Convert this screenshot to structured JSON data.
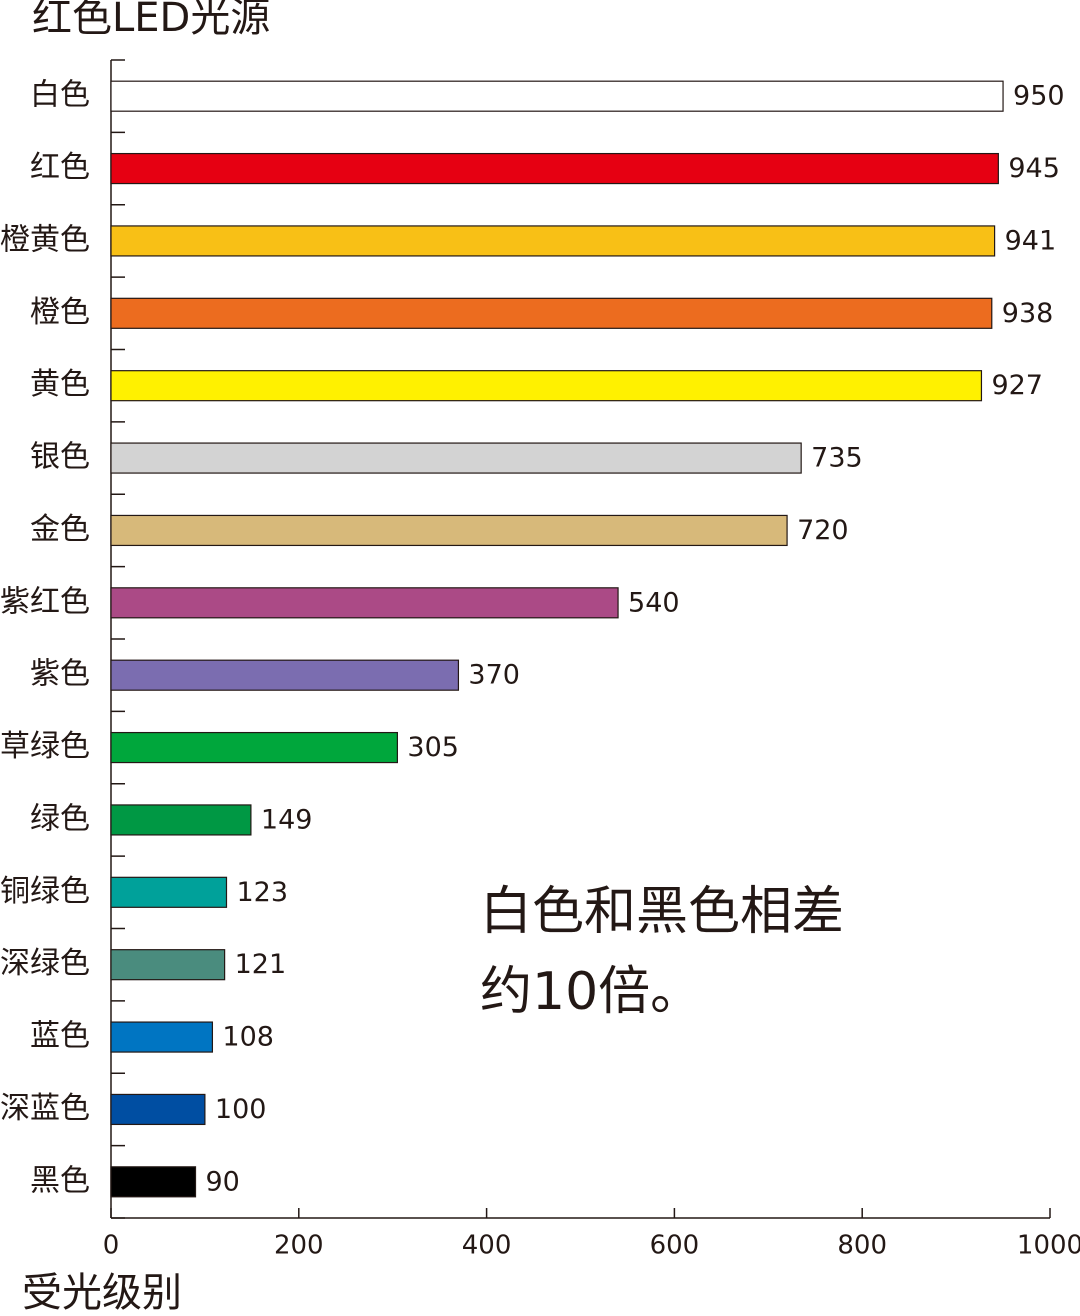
{
  "chart_data": {
    "type": "bar",
    "orientation": "horizontal",
    "title": "红色LED光源",
    "x_label": "受光级别",
    "annotation": [
      "白色和黑色相差",
      "约10倍。"
    ],
    "categories": [
      "白色",
      "红色",
      "橙黄色",
      "橙色",
      "黄色",
      "银色",
      "金色",
      "紫红色",
      "紫色",
      "草绿色",
      "绿色",
      "铜绿色",
      "深绿色",
      "蓝色",
      "深蓝色",
      "黑色"
    ],
    "values": [
      950,
      945,
      941,
      938,
      927,
      735,
      720,
      540,
      370,
      305,
      149,
      123,
      121,
      108,
      100,
      90
    ],
    "colors": [
      "#ffffff",
      "#e60012",
      "#f8c016",
      "#ec6c1f",
      "#fff100",
      "#d3d3d3",
      "#d7b97a",
      "#ab4a86",
      "#7b6db0",
      "#00a73c",
      "#009844",
      "#00a19a",
      "#4a8c7e",
      "#0075c2",
      "#004ea2",
      "#000000"
    ],
    "xlim": [
      0,
      1000
    ],
    "xticks": [
      0,
      200,
      400,
      600,
      800,
      1000
    ]
  }
}
